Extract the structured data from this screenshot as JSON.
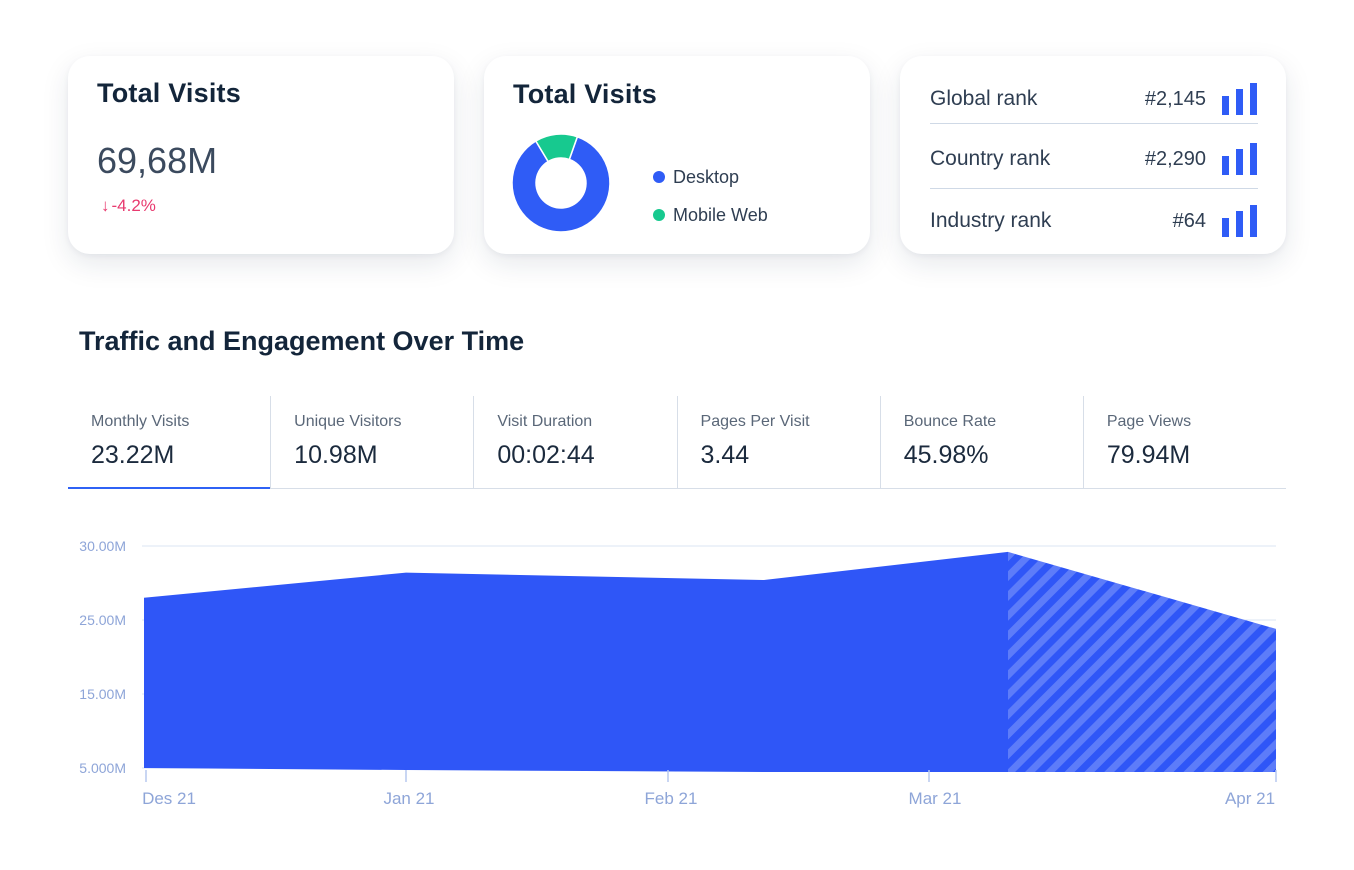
{
  "visits_card": {
    "title": "Total Visits",
    "value": "69,68M",
    "change_arrow": "↓",
    "change": "-4.2%"
  },
  "device_card": {
    "title": "Total Visits",
    "segments": [
      {
        "label": "Desktop",
        "share": 0.86,
        "color": "#2f5cf6"
      },
      {
        "label": "Mobile Web",
        "share": 0.14,
        "color": "#17c98f"
      }
    ]
  },
  "ranks_card": {
    "rows": [
      {
        "label": "Global rank",
        "value": "#2,145",
        "icon": "bar-chart-icon"
      },
      {
        "label": "Country rank",
        "value": "#2,290",
        "icon": "bar-chart-icon"
      },
      {
        "label": "Industry rank",
        "value": "#64",
        "icon": "bar-chart-icon"
      }
    ],
    "icon_color": "#2f5cf6"
  },
  "section": {
    "title": "Traffic and Engagement Over Time"
  },
  "metrics": [
    {
      "label": "Monthly Visits",
      "value": "23.22M",
      "active": true
    },
    {
      "label": "Unique Visitors",
      "value": "10.98M",
      "active": false
    },
    {
      "label": "Visit Duration",
      "value": "00:02:44",
      "active": false
    },
    {
      "label": "Pages Per Visit",
      "value": "3.44",
      "active": false
    },
    {
      "label": "Bounce Rate",
      "value": "45.98%",
      "active": false
    },
    {
      "label": "Page Views",
      "value": "79.94M",
      "active": false
    }
  ],
  "chart_data": {
    "type": "area",
    "title": "",
    "xlabel": "",
    "ylabel": "",
    "y_tick_labels": [
      "30.00M",
      "25.00M",
      "15.00M",
      "5.000M"
    ],
    "x_tick_labels": [
      "Des 21",
      "Jan 21",
      "Feb 21",
      "Mar 21",
      "Apr 21"
    ],
    "series": [
      {
        "x": [
          "Des 21",
          "Jan 21",
          "Feb 21 (late)",
          "Mar 21 (mid)",
          "Apr 21"
        ],
        "values": [
          26.5,
          28.2,
          27.7,
          29.6,
          24.4
        ]
      }
    ],
    "projected_from": "Mar 21 (mid)",
    "fill_color": "#2f56f7",
    "grid": true
  }
}
